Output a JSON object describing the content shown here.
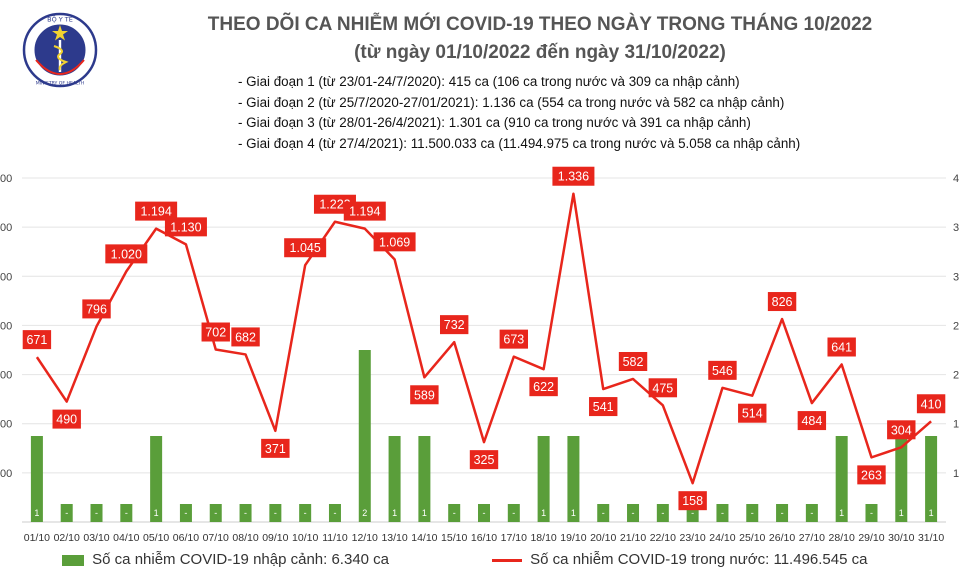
{
  "header": {
    "title_line1": "THEO DÕI CA NHIỄM MỚI COVID-19 THEO NGÀY TRONG THÁNG 10/2022",
    "title_line2": "(từ ngày 01/10/2022 đến ngày 31/10/2022)",
    "logo_text_top": "BỘ Y TẾ",
    "logo_text_bottom": "MINISTRY OF HEALTH",
    "notes": [
      "- Giai đoạn 1 (từ 23/01-24/7/2020): 415 ca (106 ca trong nước và 309 ca nhập cảnh)",
      "- Giai đoạn 2 (từ 25/7/2020-27/01/2021): 1.136 ca (554 ca trong nước và 582 ca nhập cảnh)",
      "- Giai đoạn 3 (từ 28/01-26/4/2021): 1.301 ca (910 ca trong nước và 391 ca nhập cảnh)",
      "- Giai đoạn 4 (từ 27/4/2021): 11.500.033 ca (11.494.975 ca trong nước và 5.058 ca nhập cảnh)"
    ]
  },
  "colors": {
    "bar": "#5a9e3a",
    "line": "#e8261c",
    "label_box": "#e8261c",
    "label_text": "#ffffff",
    "title": "#555555",
    "grid": "#e4e4e4"
  },
  "chart_data": {
    "type": "bar+line",
    "categories": [
      "01/10",
      "02/10",
      "03/10",
      "04/10",
      "05/10",
      "06/10",
      "07/10",
      "08/10",
      "09/10",
      "10/10",
      "11/10",
      "12/10",
      "13/10",
      "14/10",
      "15/10",
      "16/10",
      "17/10",
      "18/10",
      "19/10",
      "20/10",
      "21/10",
      "22/10",
      "23/10",
      "24/10",
      "25/10",
      "26/10",
      "27/10",
      "28/10",
      "29/10",
      "30/10",
      "31/10"
    ],
    "series": [
      {
        "name": "Số ca nhiễm COVID-19 nhập cảnh: 6.340 ca",
        "kind": "bar",
        "axis": "right",
        "values": [
          1,
          0,
          0,
          0,
          1,
          0,
          0,
          0,
          0,
          0,
          0,
          2,
          1,
          1,
          0,
          0,
          0,
          1,
          1,
          0,
          0,
          0,
          0,
          0,
          0,
          0,
          0,
          1,
          0,
          1,
          1
        ],
        "labels": [
          "1",
          "-",
          "-",
          "-",
          "1",
          "-",
          "-",
          "-",
          "-",
          "-",
          "-",
          "2",
          "1",
          "1",
          "-",
          "-",
          "-",
          "1",
          "1",
          "-",
          "-",
          "-",
          "-",
          "-",
          "-",
          "-",
          "-",
          "1",
          "-",
          "1",
          "1"
        ]
      },
      {
        "name": "Số ca nhiễm COVID-19 trong nước: 11.496.545 ca",
        "kind": "line",
        "axis": "left",
        "values": [
          671,
          490,
          796,
          1020,
          1194,
          1130,
          702,
          682,
          371,
          1045,
          1222,
          1194,
          1069,
          589,
          732,
          325,
          673,
          622,
          1336,
          541,
          582,
          475,
          158,
          546,
          514,
          826,
          484,
          641,
          263,
          304,
          410
        ],
        "labels": [
          "671",
          "490",
          "796",
          "1.020",
          "1.194",
          "1.130",
          "702",
          "682",
          "371",
          "1.045",
          "1.222",
          "1.194",
          "1.069",
          "589",
          "732",
          "325",
          "673",
          "622",
          "1.336",
          "541",
          "582",
          "475",
          "158",
          "546",
          "514",
          "826",
          "484",
          "641",
          "263",
          "304",
          "410"
        ]
      }
    ],
    "y_left": {
      "range": [
        0,
        1400
      ],
      "ticks": [
        "00",
        "00",
        "00",
        "00",
        "00",
        "00",
        "00"
      ]
    },
    "y_right": {
      "range": [
        0,
        4
      ],
      "ticks": [
        "1",
        "1",
        "2",
        "2",
        "3",
        "3",
        "4"
      ]
    },
    "grid": true,
    "legend": "bottom"
  }
}
